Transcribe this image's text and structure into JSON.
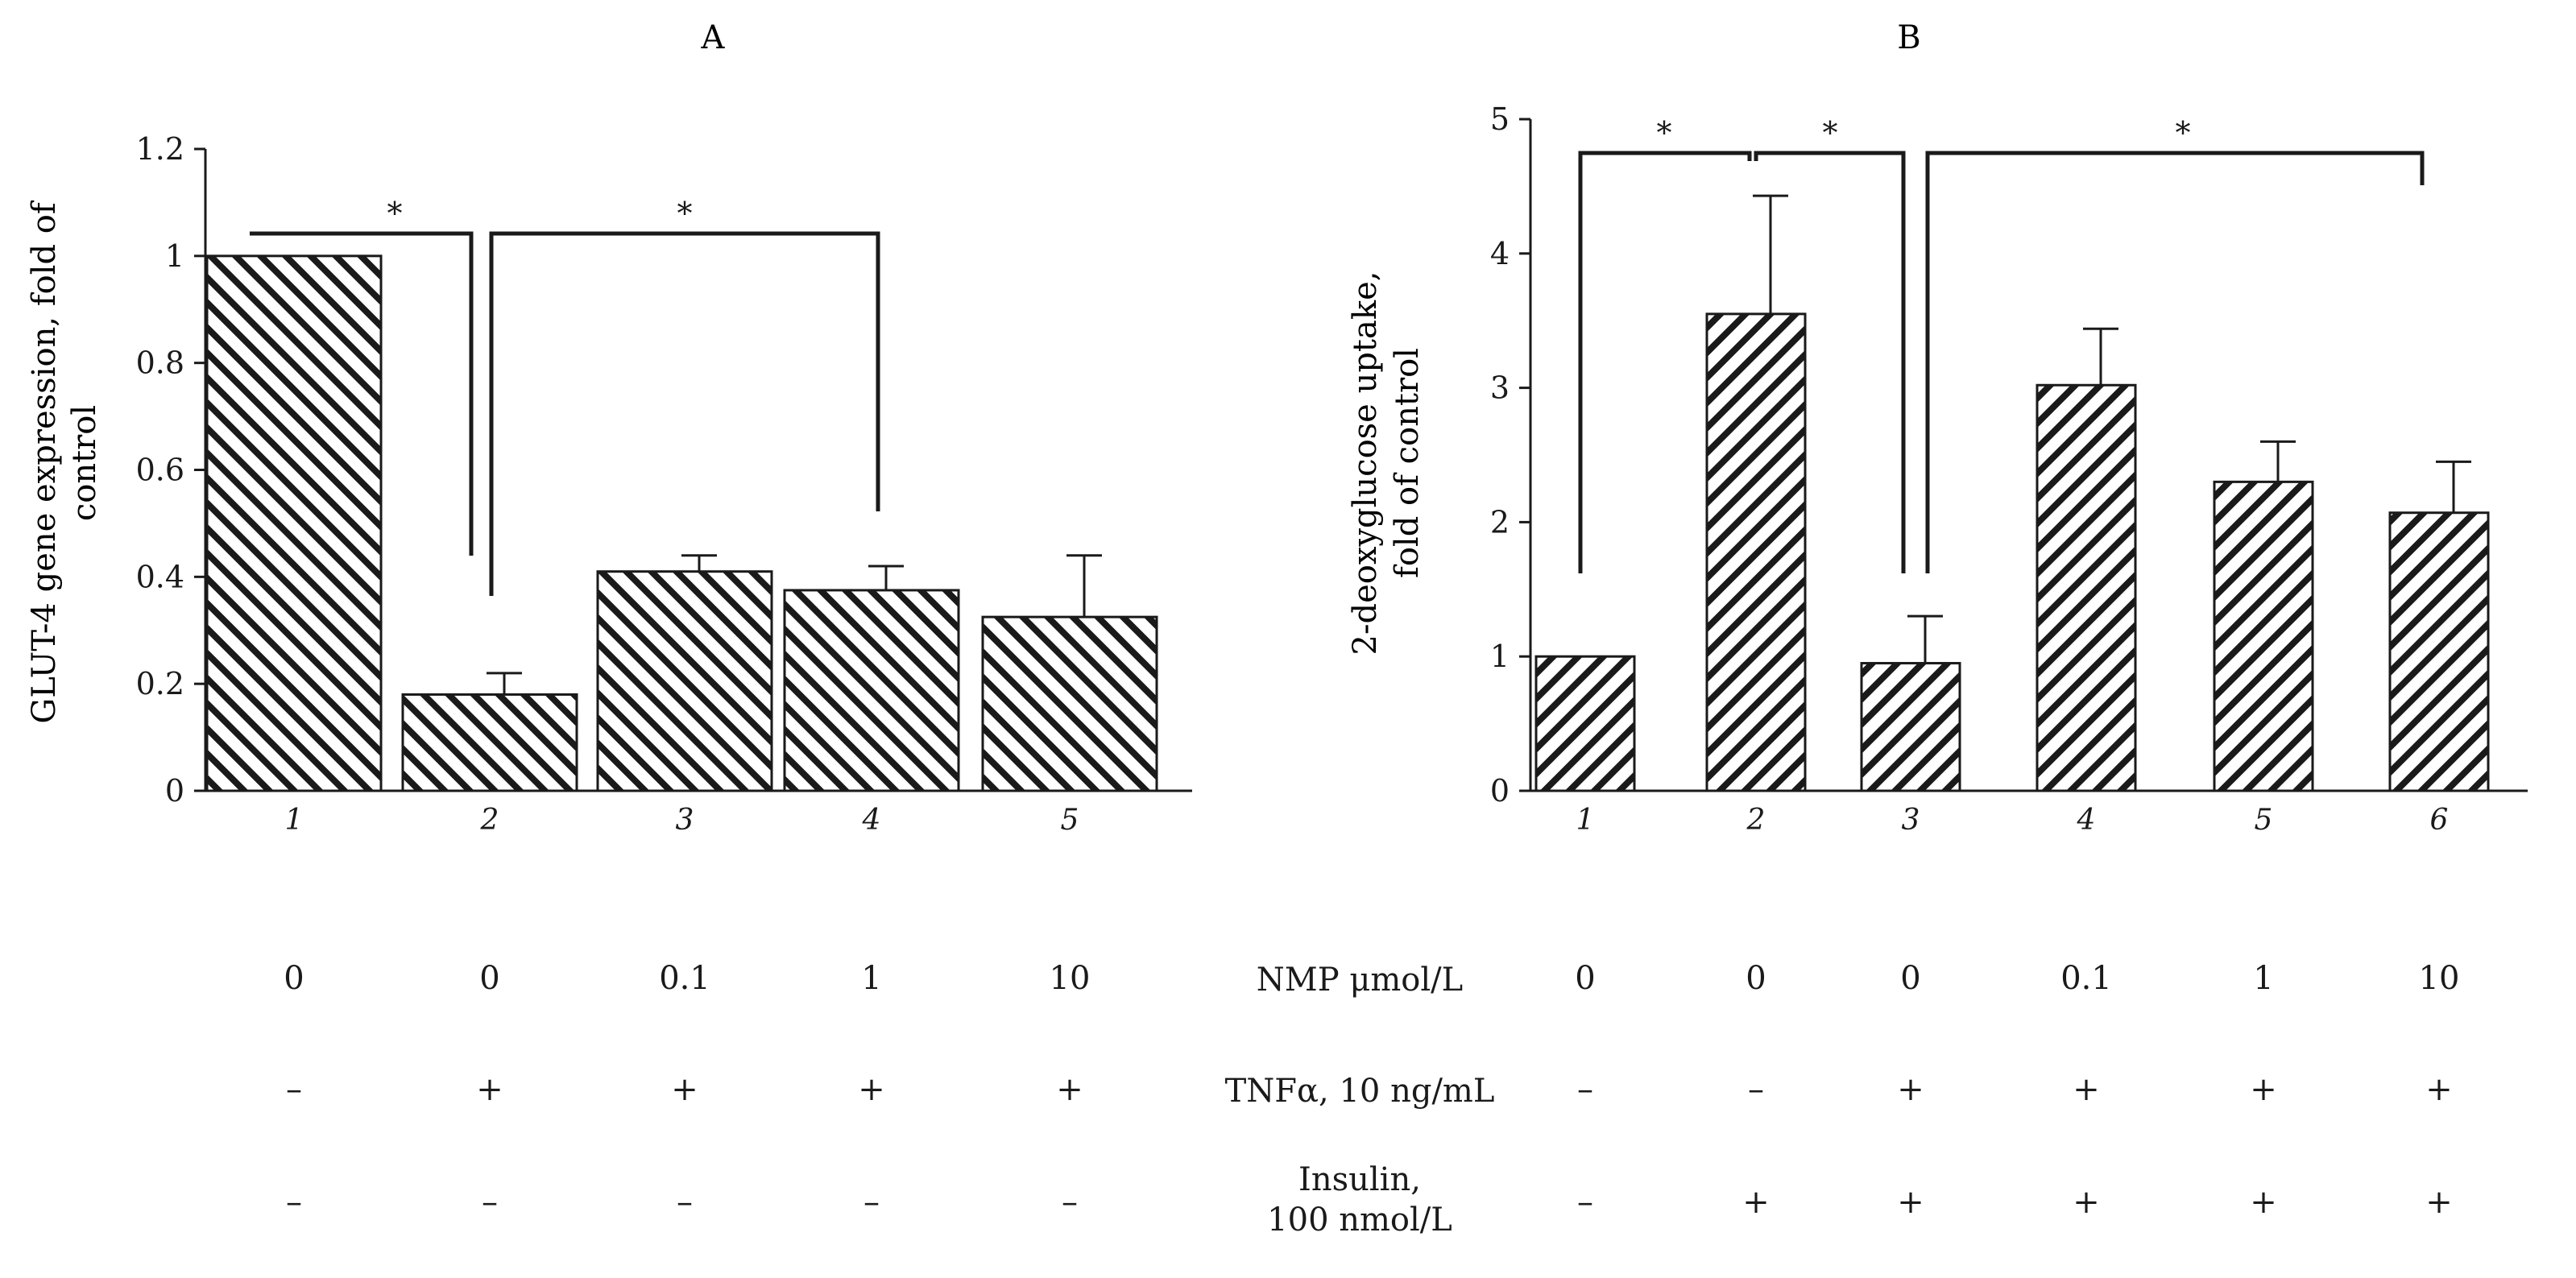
{
  "chart_data": [
    {
      "panel": "A",
      "type": "bar",
      "title": "A",
      "ylabel_lines": [
        "GLUT-4 gene expression,  fold of",
        "control"
      ],
      "categories": [
        "1",
        "2",
        "3",
        "4",
        "5"
      ],
      "values": [
        1.0,
        0.18,
        0.41,
        0.375,
        0.325
      ],
      "errors": [
        0,
        0.04,
        0.03,
        0.045,
        0.115
      ],
      "ylim": [
        0,
        1.2
      ],
      "yticks": [
        "0",
        "0.2",
        "0.4",
        "0.6",
        "0.8",
        "1",
        "1.2"
      ],
      "significance": [
        {
          "from": "1",
          "to": "2",
          "label": "*"
        },
        {
          "from": "2",
          "to": "4",
          "label": "*"
        }
      ]
    },
    {
      "panel": "B",
      "type": "bar",
      "title": "B",
      "ylabel_lines": [
        "2-deoxyglucose  uptake,",
        "fold of control"
      ],
      "categories": [
        "1",
        "2",
        "3",
        "4",
        "5",
        "6"
      ],
      "values": [
        1.0,
        3.55,
        0.95,
        3.02,
        2.3,
        2.07
      ],
      "errors": [
        0,
        0.88,
        0.35,
        0.42,
        0.3,
        0.38
      ],
      "ylim": [
        0,
        5
      ],
      "yticks": [
        "0",
        "1",
        "2",
        "3",
        "4",
        "5"
      ],
      "significance": [
        {
          "from": "1",
          "to": "2",
          "label": "*"
        },
        {
          "from": "2",
          "to": "3",
          "label": "*"
        },
        {
          "from": "3",
          "to": "6",
          "label": "*"
        }
      ]
    }
  ],
  "treatments": {
    "rows": [
      {
        "label": "NMP μmol/L",
        "panel_a": [
          "0",
          "0",
          "0.1",
          "1",
          "10"
        ],
        "panel_b": [
          "0",
          "0",
          "0",
          "0.1",
          "1",
          "10"
        ]
      },
      {
        "label": "TNFα, 10 ng/mL",
        "panel_a": [
          "–",
          "+",
          "+",
          "+",
          "+"
        ],
        "panel_b": [
          "–",
          "–",
          "+",
          "+",
          "+",
          "+"
        ]
      },
      {
        "label_lines": [
          "Insulin,",
          "100 nmol/L"
        ],
        "panel_a": [
          "–",
          "–",
          "–",
          "–",
          "–"
        ],
        "panel_b": [
          "–",
          "+",
          "+",
          "+",
          "+",
          "+"
        ]
      }
    ]
  }
}
